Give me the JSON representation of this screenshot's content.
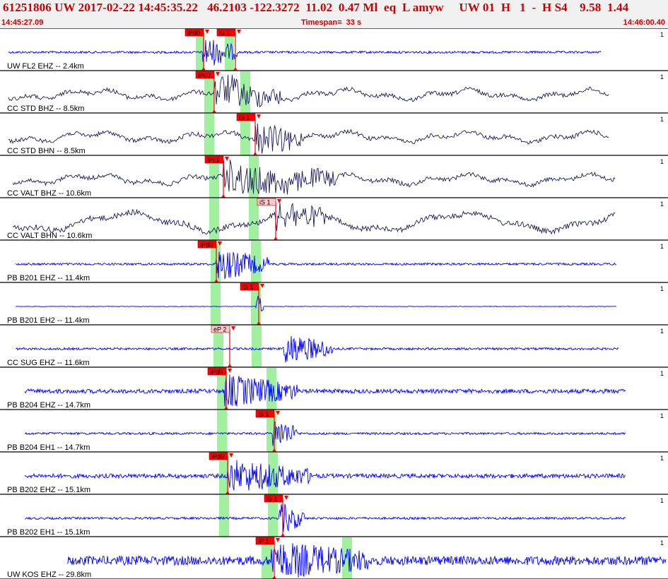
{
  "header": {
    "title": "61251806 UW 2017-02-22 14:45:35.22   46.2103 -122.3272  11.02  0.47 Ml  eq  L amyw     UW 01  H   1  -  H S4    9.58  1.44",
    "start_time": "14:45:27.09",
    "timespan": "Timespan=  33 s",
    "end_time": "14:46:00.40"
  },
  "colors": {
    "title_red": "#cc0000",
    "pick_red": "#ff0000",
    "pick_border": "#b00000",
    "pick_light": "#ffc8c8",
    "window_green": "#a0f0a0",
    "trace_blue": "#0000ff",
    "trace_navy": "#1a1a5a",
    "separator": "#000000"
  },
  "traces": [
    {
      "label": "UW FL2 EHZ -- 2.4km",
      "scale": "1",
      "color": "blue",
      "amp": "low",
      "picks": [
        {
          "label": "iPd0",
          "style": "solid"
        },
        {
          "label": "iS 1",
          "style": "solid"
        }
      ]
    },
    {
      "label": "CC STD BHZ -- 8.5km",
      "scale": "1",
      "color": "navy",
      "amp": "wave",
      "picks": [
        {
          "label": "iPc0",
          "style": "solid"
        }
      ]
    },
    {
      "label": "CC STD BHN -- 8.5km",
      "scale": "1",
      "color": "navy",
      "amp": "wave",
      "picks": [
        {
          "label": "iS 1",
          "style": "solid"
        }
      ]
    },
    {
      "label": "CC VALT BHZ -- 10.6km",
      "scale": "1",
      "color": "navy",
      "amp": "wave",
      "picks": [
        {
          "label": "iPc1",
          "style": "solid"
        }
      ]
    },
    {
      "label": "CC VALT BHN -- 10.6km",
      "scale": "1",
      "color": "navy",
      "amp": "bigwave",
      "picks": [
        {
          "label": "iS 1",
          "style": "light"
        }
      ]
    },
    {
      "label": "PB B201 EHZ -- 11.4km",
      "scale": "1",
      "color": "blue",
      "amp": "low",
      "picks": [
        {
          "label": "iPd0",
          "style": "solid"
        }
      ]
    },
    {
      "label": "PB B201 EH2 -- 11.4km",
      "scale": "1",
      "color": "blue",
      "amp": "flat",
      "picks": [
        {
          "label": "iS 1",
          "style": "solid"
        }
      ]
    },
    {
      "label": "CC SUG EHZ -- 11.6km",
      "scale": "1",
      "color": "blue",
      "amp": "low",
      "picks": [
        {
          "label": "eP 2",
          "style": "light"
        }
      ]
    },
    {
      "label": "PB B204 EHZ -- 14.7km",
      "scale": "1",
      "color": "blue",
      "amp": "med",
      "picks": [
        {
          "label": "iPd0",
          "style": "solid"
        }
      ]
    },
    {
      "label": "PB B204 EH1 -- 14.7km",
      "scale": "1",
      "color": "blue",
      "amp": "low",
      "picks": [
        {
          "label": "iS 1",
          "style": "solid"
        }
      ]
    },
    {
      "label": "PB B202 EHZ -- 15.1km",
      "scale": "1",
      "color": "blue",
      "amp": "med",
      "picks": [
        {
          "label": "iPd0",
          "style": "solid"
        }
      ]
    },
    {
      "label": "PB B202 EH1 -- 15.1km",
      "scale": "1",
      "color": "blue",
      "amp": "low",
      "picks": [
        {
          "label": "iS 1",
          "style": "solid"
        }
      ]
    },
    {
      "label": "UW KOS EHZ -- 29.8km",
      "scale": "1",
      "color": "blue",
      "amp": "high",
      "picks": [
        {
          "label": "iP 1",
          "style": "solid"
        }
      ]
    }
  ]
}
